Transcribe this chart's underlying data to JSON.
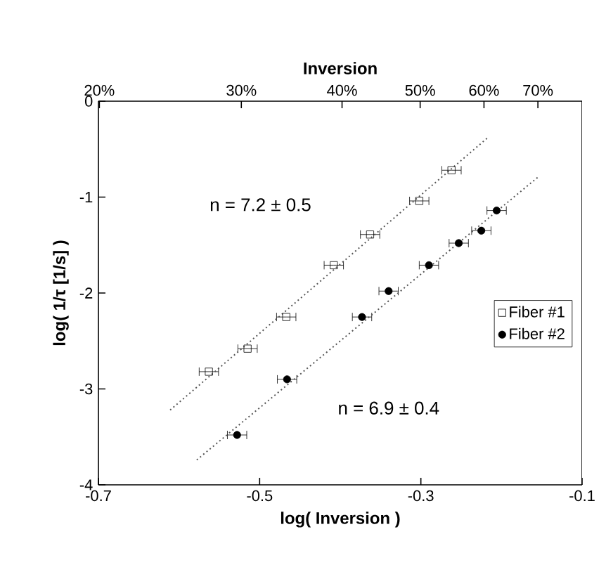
{
  "chart_data": {
    "type": "scatter",
    "xlabel": "log( Inversion )",
    "ylabel": "log( 1/τ [1/s] )",
    "x2label": "Inversion",
    "xlim": [
      -0.7,
      -0.1
    ],
    "xticks": [
      -0.7,
      -0.5,
      -0.3,
      -0.1
    ],
    "ylim": [
      -4,
      0
    ],
    "yticks": [
      -4,
      -3,
      -2,
      -1,
      0
    ],
    "log": "x2",
    "x2lim": [
      19.95,
      79.43
    ],
    "x2ticks": [
      {
        "value": 20,
        "label": "20%"
      },
      {
        "value": 30,
        "label": "30%"
      },
      {
        "value": 40,
        "label": "40%"
      },
      {
        "value": 50,
        "label": "50%"
      },
      {
        "value": 60,
        "label": "60%"
      },
      {
        "value": 70,
        "label": "70%"
      }
    ],
    "series": [
      {
        "name": "Fiber #1",
        "color": "#000000",
        "marker": "square",
        "x": [
          -0.563,
          -0.515,
          -0.467,
          -0.408,
          -0.363,
          -0.302,
          -0.262
        ],
        "values": [
          -2.82,
          -2.58,
          -2.25,
          -1.71,
          -1.39,
          -1.04,
          -0.72
        ],
        "xerrors": [
          0.012,
          0.012,
          0.012,
          0.012,
          0.012,
          0.012,
          0.012
        ]
      },
      {
        "name": "Fiber #2",
        "color": "#000000",
        "marker": "circle",
        "x": [
          -0.528,
          -0.466,
          -0.373,
          -0.34,
          -0.29,
          -0.253,
          -0.225,
          -0.206
        ],
        "values": [
          -3.48,
          -2.9,
          -2.25,
          -1.98,
          -1.71,
          -1.48,
          -1.35,
          -1.14
        ],
        "xerrors": [
          0.012,
          0.012,
          0.012,
          0.012,
          0.012,
          0.012,
          0.012,
          0.012
        ]
      },
      {
        "type": "line",
        "color": "#555555",
        "line_style": "dotted",
        "marker": "none",
        "x": [
          -0.611,
          -0.217
        ],
        "values": [
          -3.22,
          -0.38
        ]
      },
      {
        "type": "line",
        "color": "#555555",
        "line_style": "dotted",
        "marker": "none",
        "x": [
          -0.578,
          -0.153
        ],
        "values": [
          -3.74,
          -0.78
        ]
      }
    ],
    "annotations": [
      "n = 7.2 ± 0.5",
      "n = 6.9 ± 0.4"
    ],
    "legend": "right"
  }
}
